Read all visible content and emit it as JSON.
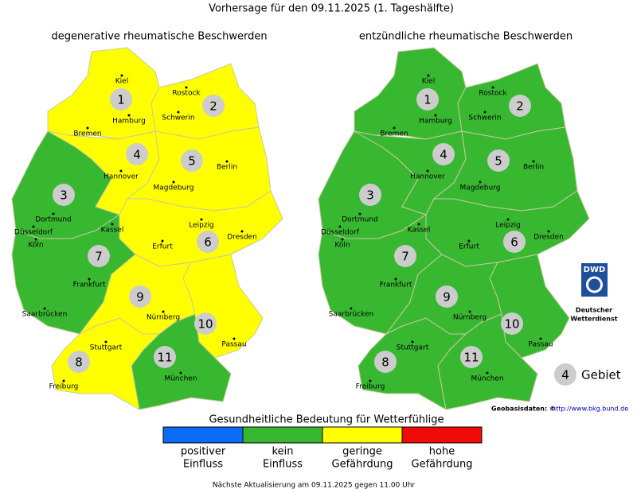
{
  "title": "Vorhersage für den 09.11.2025 (1. Tageshälfte)",
  "maps": [
    {
      "title": "degenerative rheumatische Beschwerden",
      "regions": [
        {
          "label": "1",
          "level": 2
        },
        {
          "label": "2",
          "level": 2
        },
        {
          "label": "3",
          "level": 1
        },
        {
          "label": "4",
          "level": 2
        },
        {
          "label": "5",
          "level": 2
        },
        {
          "label": "6",
          "level": 2
        },
        {
          "label": "7",
          "level": 1
        },
        {
          "label": "8",
          "level": 2
        },
        {
          "label": "9",
          "level": 2
        },
        {
          "label": "10",
          "level": 2
        },
        {
          "label": "11",
          "level": 1
        }
      ]
    },
    {
      "title": "entzündliche rheumatische Beschwerden",
      "regions": [
        {
          "label": "1",
          "level": 1
        },
        {
          "label": "2",
          "level": 1
        },
        {
          "label": "3",
          "level": 1
        },
        {
          "label": "4",
          "level": 1
        },
        {
          "label": "5",
          "level": 1
        },
        {
          "label": "6",
          "level": 1
        },
        {
          "label": "7",
          "level": 1
        },
        {
          "label": "8",
          "level": 1
        },
        {
          "label": "9",
          "level": 1
        },
        {
          "label": "10",
          "level": 1
        },
        {
          "label": "11",
          "level": 1
        }
      ]
    }
  ],
  "cities": [
    "Kiel",
    "Rostock",
    "Hamburg",
    "Schwerin",
    "Bremen",
    "Hannover",
    "Berlin",
    "Magdeburg",
    "Dortmund",
    "Düsseldorf",
    "Köln",
    "Kassel",
    "Leipzig",
    "Dresden",
    "Erfurt",
    "Frankfurt",
    "Saarbrücken",
    "Nürnberg",
    "Passau",
    "Stuttgart",
    "München",
    "Freiburg"
  ],
  "legend": {
    "title": "Gesundheitliche Bedeutung für Wetterfühlige",
    "items": [
      {
        "lines": [
          "positiver",
          "Einfluss"
        ],
        "color": "#0a6cf5"
      },
      {
        "lines": [
          "kein",
          "Einfluss"
        ],
        "color": "#38b830"
      },
      {
        "lines": [
          "geringe",
          "Gefährdung"
        ],
        "color": "#ffff00"
      },
      {
        "lines": [
          "hohe",
          "Gefährdung"
        ],
        "color": "#f00a0a"
      }
    ]
  },
  "key": {
    "number": "4",
    "label": "Gebiet"
  },
  "logo": {
    "abbr": "DWD",
    "lines": [
      "Deutscher",
      "Wetterdienst"
    ]
  },
  "credit": {
    "text": "Geobasisdaten: ©",
    "url": "http://www.bkg.bund.de"
  },
  "footer": "Nächste Aktualisierung am 09.11.2025 gegen 11.00 Uhr"
}
